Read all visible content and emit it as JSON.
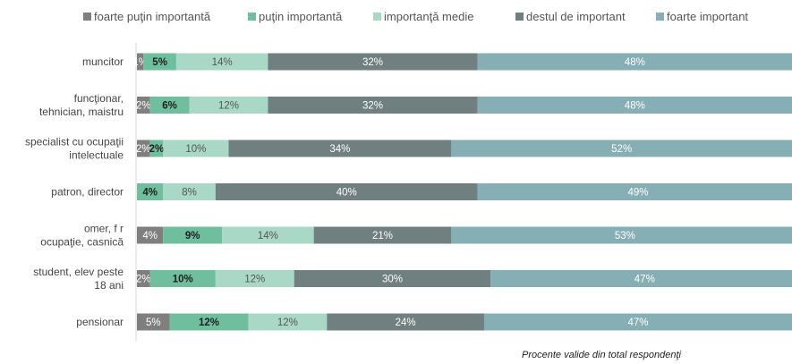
{
  "chart_data": {
    "type": "bar",
    "orientation": "horizontal",
    "stacked": true,
    "categories": [
      [
        "muncitor"
      ],
      [
        "funcţionar,",
        "tehnician, maistru"
      ],
      [
        "specialist cu ocupaţii",
        "intelectuale"
      ],
      [
        "patron, director"
      ],
      [
        "omer, f r",
        "ocupaţie, casnică"
      ],
      [
        "student, elev peste",
        "18 ani"
      ],
      [
        "pensionar"
      ]
    ],
    "series": [
      {
        "name": "foarte puţin importantă",
        "color": "#7f7f7f",
        "label_color": "#ffffff",
        "values": [
          1,
          2,
          2,
          0,
          4,
          2,
          5
        ]
      },
      {
        "name": "puţin importantă",
        "color": "#6fbf9f",
        "label_color": "#1f1f1f",
        "values": [
          5,
          6,
          2,
          4,
          9,
          10,
          12
        ]
      },
      {
        "name": "importanţă medie",
        "color": "#a9d9c6",
        "label_color": "#555555",
        "values": [
          14,
          12,
          10,
          8,
          14,
          12,
          12
        ]
      },
      {
        "name": "destul de important",
        "color": "#707f7f",
        "label_color": "#ffffff",
        "values": [
          32,
          32,
          34,
          40,
          21,
          30,
          24
        ]
      },
      {
        "name": "foarte important",
        "color": "#86afb5",
        "label_color": "#ffffff",
        "values": [
          48,
          48,
          52,
          49,
          53,
          47,
          47
        ]
      }
    ],
    "value_suffix": "%",
    "xlim": [
      0,
      100
    ],
    "grid": false,
    "legend_position": "top"
  },
  "footnote": "Procente valide din total respondenţi"
}
